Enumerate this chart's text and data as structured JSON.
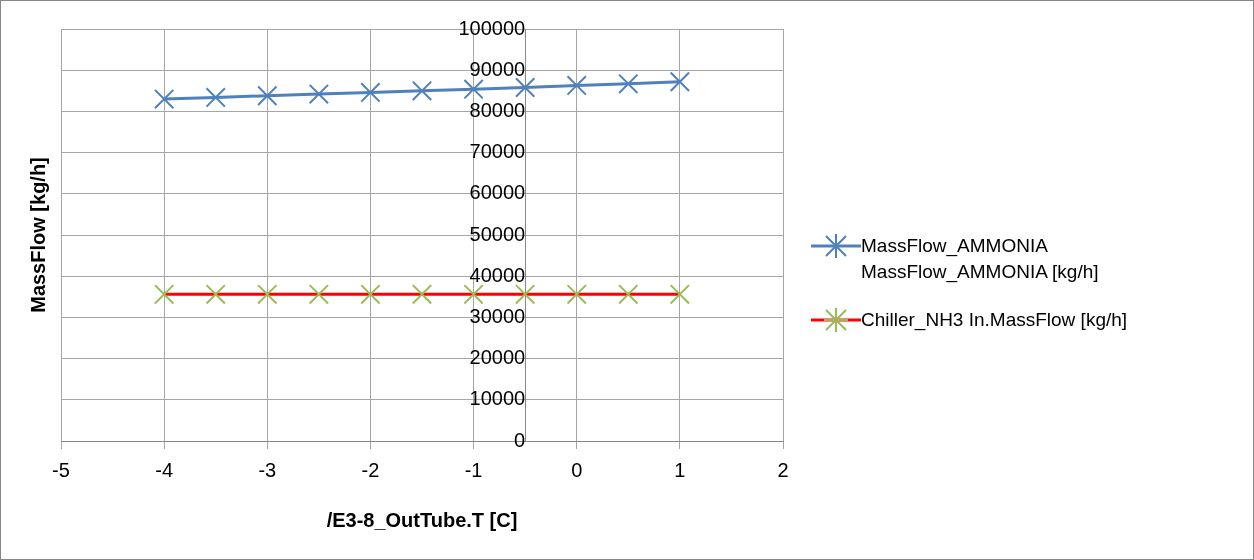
{
  "chart_data": {
    "type": "line",
    "xlabel": "/E3-8_OutTube.T [C]",
    "ylabel": "MassFlow [kg/h]",
    "x": [
      -4,
      -3.5,
      -3,
      -2.5,
      -2,
      -1.5,
      -1,
      -0.5,
      0,
      0.5,
      1
    ],
    "series": [
      {
        "name": "MassFlow_AMMONIA MassFlow_AMMONIA [kg/h]",
        "color": "#4f81bd",
        "values": [
          83000,
          83400,
          83800,
          84200,
          84600,
          85000,
          85400,
          85800,
          86300,
          86700,
          87200
        ]
      },
      {
        "name": "Chiller_NH3 In.MassFlow [kg/h]",
        "color": "#ff0000",
        "colors": [
          "#9bbb59",
          "#9bbb59",
          "#9bbb59",
          "#9bbb59",
          "#9bbb59",
          "#9bbb59",
          "#9bbb59",
          "#9bbb59",
          "#9bbb59",
          "#9bbb59",
          "#9bbb59"
        ],
        "values": [
          35600,
          35600,
          35600,
          35600,
          35600,
          35600,
          35600,
          35600,
          35600,
          35600,
          35600
        ]
      }
    ],
    "xlim": [
      -5,
      2
    ],
    "xticks": [
      -5,
      -4,
      -3,
      -2,
      -1,
      0,
      1,
      2
    ],
    "ylim": [
      0,
      100000
    ],
    "yticks": [
      0,
      10000,
      20000,
      30000,
      40000,
      50000,
      60000,
      70000,
      80000,
      90000,
      100000
    ],
    "grid": true,
    "legend": "right",
    "marker": "cross",
    "line_style": "solid"
  }
}
